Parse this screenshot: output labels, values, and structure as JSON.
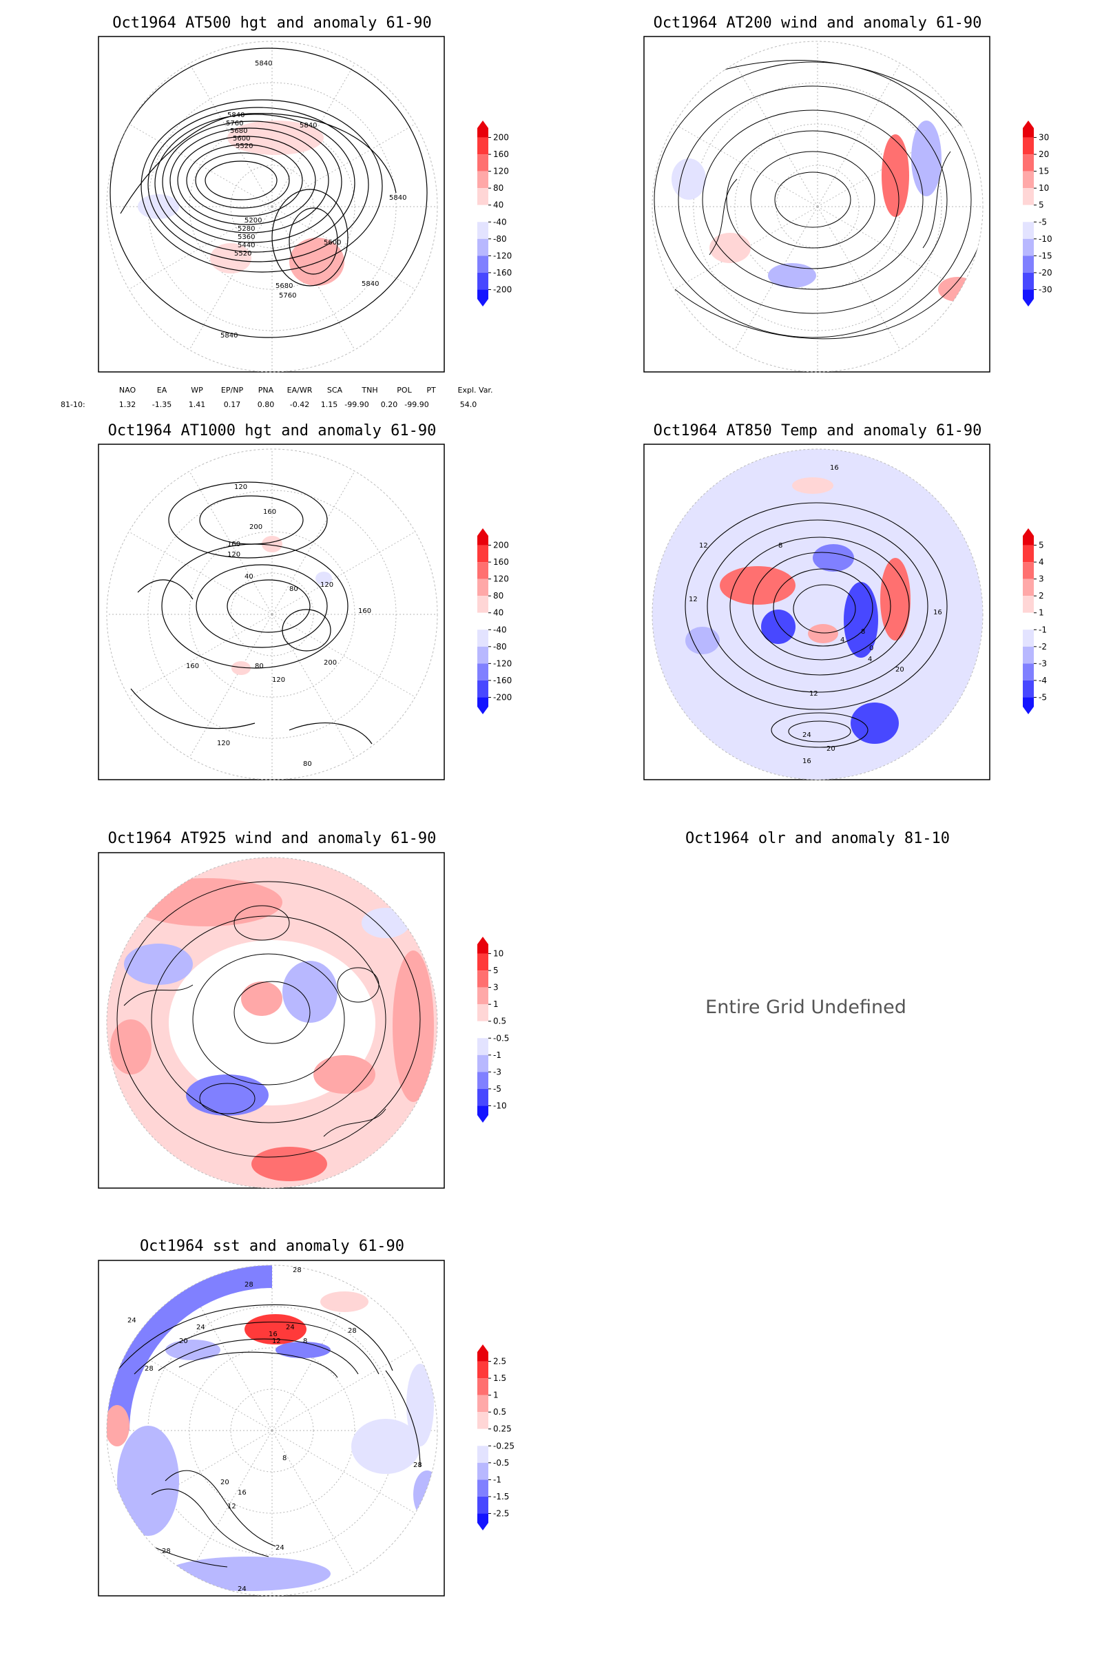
{
  "panels": [
    {
      "key": "p500",
      "title": "Oct1964 AT500 hgt and anomaly 61-90",
      "legend": [
        "200",
        "160",
        "120",
        "80",
        "40",
        "-40",
        "-80",
        "-120",
        "-160",
        "-200"
      ],
      "contour_labels": [
        "5840",
        "5840",
        "5760",
        "5680",
        "5600",
        "5520",
        "5200",
        "5280",
        "5360",
        "5440",
        "5520",
        "5600",
        "5680",
        "5760",
        "5840",
        "5840",
        "5840",
        "5840"
      ]
    },
    {
      "key": "p200",
      "title": "Oct1964 AT200 wind and anomaly 61-90",
      "legend": [
        "30",
        "20",
        "15",
        "10",
        "5",
        "-5",
        "-10",
        "-15",
        "-20",
        "-30"
      ]
    },
    {
      "key": "p1000",
      "title": "Oct1964 AT1000 hgt and anomaly 61-90",
      "legend": [
        "200",
        "160",
        "120",
        "80",
        "40",
        "-40",
        "-80",
        "-120",
        "-160",
        "-200"
      ],
      "contour_labels": [
        "120",
        "160",
        "200",
        "160",
        "120",
        "40",
        "80",
        "120",
        "160",
        "200",
        "160",
        "120",
        "80",
        "80",
        "120"
      ]
    },
    {
      "key": "p850",
      "title": "Oct1964 AT850 Temp and anomaly 61-90",
      "legend": [
        "5",
        "4",
        "3",
        "2",
        "1",
        "-1",
        "-2",
        "-3",
        "-4",
        "-5"
      ],
      "contour_labels": [
        "16",
        "12",
        "12",
        "8",
        "4",
        "0",
        "4",
        "8",
        "12",
        "16",
        "20",
        "24",
        "20",
        "16"
      ]
    },
    {
      "key": "p925",
      "title": "Oct1964 AT925 wind and anomaly 61-90",
      "legend": [
        "10",
        "5",
        "3",
        "1",
        "0.5",
        "-0.5",
        "-1",
        "-3",
        "-5",
        "-10"
      ]
    },
    {
      "key": "polr",
      "title": "Oct1964 olr and anomaly 81-10",
      "message": "Entire Grid Undefined"
    },
    {
      "key": "psst",
      "title": "Oct1964 sst and anomaly 61-90",
      "legend": [
        "2.5",
        "1.5",
        "1",
        "0.5",
        "0.25",
        "-0.25",
        "-0.5",
        "-1",
        "-1.5",
        "-2.5"
      ],
      "contour_labels": [
        "28",
        "28",
        "24",
        "24",
        "20",
        "16",
        "12",
        "8",
        "24",
        "28",
        "28",
        "20",
        "16",
        "12",
        "8",
        "24",
        "28",
        "28",
        "24"
      ]
    }
  ],
  "teleconnections": {
    "headers": [
      "NAO",
      "EA",
      "WP",
      "EP/NP",
      "PNA",
      "EA/WR",
      "SCA",
      "TNH",
      "POL",
      "PT",
      "Expl. Var."
    ],
    "row_label": "81-10:",
    "values": [
      "1.32",
      "-1.35",
      "1.41",
      "0.17",
      "0.80",
      "-0.42",
      "1.15",
      "-99.90",
      "0.20",
      "-99.90",
      "54.0"
    ]
  },
  "colors": {
    "coast": "#00c5c5",
    "warm": [
      "#e8000b",
      "#ff3a3a",
      "#ff7070",
      "#ffa8a8",
      "#ffd6d6"
    ],
    "cool": [
      "#e3e3ff",
      "#b8b8ff",
      "#8080ff",
      "#4848ff",
      "#1414ff"
    ]
  }
}
